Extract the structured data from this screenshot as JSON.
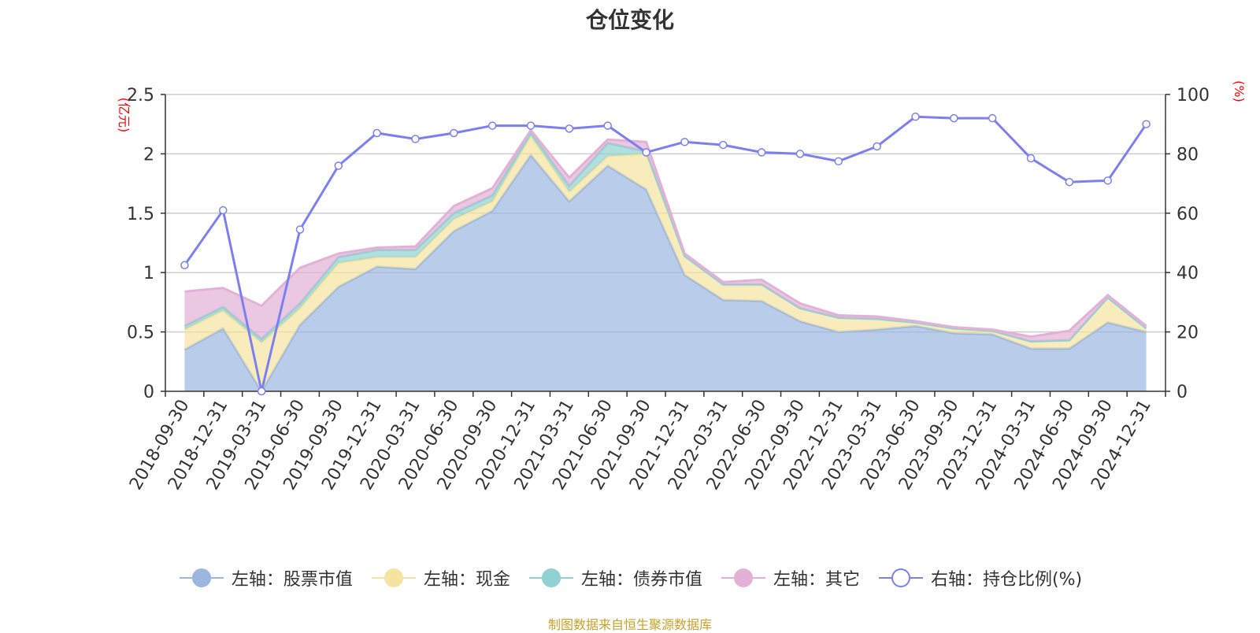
{
  "chart_data": {
    "type": "area",
    "title": "仓位变化",
    "left_axis_label": "(亿元)",
    "right_axis_label": "(%)",
    "left_ylim": [
      0,
      2.5
    ],
    "left_ticks": [
      "0",
      "0.5",
      "1",
      "1.5",
      "2",
      "2.5"
    ],
    "right_ylim": [
      0,
      100
    ],
    "right_ticks": [
      "0",
      "20",
      "40",
      "60",
      "80",
      "100"
    ],
    "grid": true,
    "legend_position": "bottom",
    "categories": [
      "2018-09-30",
      "2018-12-31",
      "2019-03-31",
      "2019-06-30",
      "2019-09-30",
      "2019-12-31",
      "2020-03-31",
      "2020-06-30",
      "2020-09-30",
      "2020-12-31",
      "2021-03-31",
      "2021-06-30",
      "2021-09-30",
      "2021-12-31",
      "2022-03-31",
      "2022-06-30",
      "2022-09-30",
      "2022-12-31",
      "2023-03-31",
      "2023-06-30",
      "2023-09-30",
      "2023-12-31",
      "2024-03-31",
      "2024-06-30",
      "2024-09-30",
      "2024-12-31"
    ],
    "series": [
      {
        "name": "左轴：股票市值",
        "axis": "left",
        "stack": true,
        "color": "#9bb6df",
        "values": [
          0.35,
          0.53,
          0.0,
          0.56,
          0.88,
          1.05,
          1.03,
          1.35,
          1.52,
          1.99,
          1.6,
          1.9,
          1.7,
          0.98,
          0.77,
          0.76,
          0.59,
          0.5,
          0.52,
          0.55,
          0.49,
          0.48,
          0.36,
          0.36,
          0.58,
          0.5
        ]
      },
      {
        "name": "左轴：现金",
        "axis": "left",
        "stack": true,
        "color": "#f5e4a0",
        "values": [
          0.17,
          0.15,
          0.41,
          0.14,
          0.2,
          0.08,
          0.1,
          0.1,
          0.08,
          0.16,
          0.08,
          0.08,
          0.3,
          0.16,
          0.13,
          0.14,
          0.11,
          0.12,
          0.09,
          0.03,
          0.04,
          0.03,
          0.06,
          0.07,
          0.21,
          0.03
        ]
      },
      {
        "name": "左轴：债券市值",
        "axis": "left",
        "stack": true,
        "color": "#90d1d3",
        "values": [
          0.03,
          0.03,
          0.03,
          0.04,
          0.05,
          0.06,
          0.06,
          0.05,
          0.05,
          0.03,
          0.05,
          0.11,
          0.02,
          0.0,
          0.0,
          0.0,
          0.0,
          0.0,
          0.0,
          0.0,
          0.0,
          0.0,
          0.0,
          0.0,
          0.0,
          0.0
        ]
      },
      {
        "name": "左轴：其它",
        "axis": "left",
        "stack": true,
        "color": "#e3b1d6",
        "values": [
          0.29,
          0.16,
          0.28,
          0.3,
          0.03,
          0.02,
          0.03,
          0.06,
          0.06,
          0.02,
          0.07,
          0.03,
          0.08,
          0.02,
          0.02,
          0.04,
          0.04,
          0.02,
          0.02,
          0.01,
          0.01,
          0.01,
          0.04,
          0.08,
          0.02,
          0.02
        ]
      },
      {
        "name": "右轴：持仓比例(%)",
        "axis": "right",
        "stack": false,
        "color": "#7b7ff0",
        "values": [
          42.5,
          61.0,
          0.0,
          54.5,
          76.0,
          87.0,
          85.0,
          87.0,
          89.5,
          89.5,
          88.5,
          89.5,
          80.5,
          84.0,
          83.0,
          80.5,
          80.0,
          77.5,
          82.5,
          92.5,
          92.0,
          92.0,
          78.5,
          70.5,
          71.0,
          90.0
        ]
      }
    ],
    "source_note": "制图数据来自恒生聚源数据库"
  },
  "colors": {
    "axis_label": "#ff0000",
    "grid": "#cccccc",
    "text": "#333333",
    "source": "#c9a227"
  }
}
